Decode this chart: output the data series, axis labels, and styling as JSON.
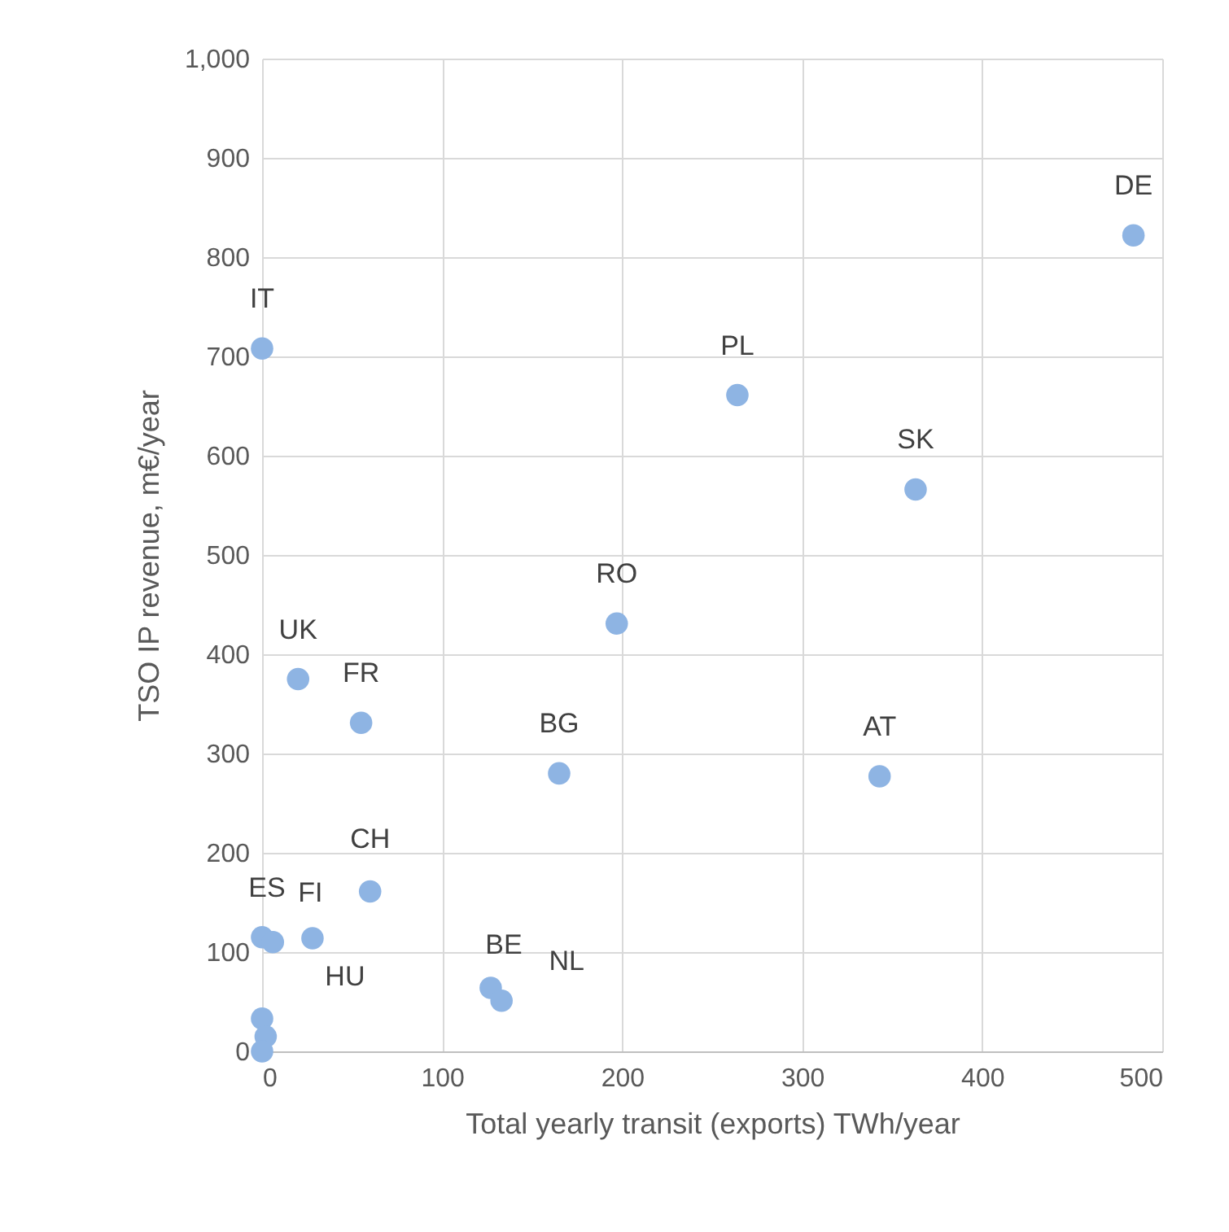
{
  "chart_data": {
    "type": "scatter",
    "xlabel": "Total yearly transit (exports) TWh/year",
    "ylabel": "TSO IP revenue, m€/year",
    "xlim": [
      0,
      500
    ],
    "xticks": [
      0,
      100,
      200,
      300,
      400,
      500
    ],
    "ylim": [
      0,
      1000
    ],
    "yticks": [
      0,
      100,
      200,
      300,
      400,
      500,
      600,
      700,
      800,
      900,
      {
        "value": 1000,
        "label": "1,000"
      }
    ],
    "grid": true,
    "marker": "circle",
    "series": [
      {
        "color": "#8eb4e3",
        "x": [
          484,
          0,
          264,
          363,
          197,
          20,
          55,
          165,
          343,
          60,
          0,
          6,
          28,
          127,
          133,
          0,
          2,
          0
        ],
        "values": [
          822,
          708,
          661,
          566,
          431,
          375,
          331,
          280,
          277,
          161,
          115,
          110,
          114,
          64,
          51,
          33,
          15,
          0
        ]
      }
    ],
    "annotations": [
      {
        "text": "DE",
        "x": 484,
        "y": 822
      },
      {
        "text": "IT",
        "x": 0,
        "y": 708
      },
      {
        "text": "PL",
        "x": 264,
        "y": 661
      },
      {
        "text": "SK",
        "x": 363,
        "y": 566
      },
      {
        "text": "RO",
        "x": 197,
        "y": 431
      },
      {
        "text": "UK",
        "x": 20,
        "y": 375
      },
      {
        "text": "FR",
        "x": 55,
        "y": 331
      },
      {
        "text": "BG",
        "x": 165,
        "y": 280
      },
      {
        "text": "AT",
        "x": 343,
        "y": 277
      },
      {
        "text": "CH",
        "x": 60,
        "y": 161
      },
      {
        "text": "ES",
        "x": 0,
        "y": 115
      },
      {
        "text": "FI",
        "x": 6,
        "y": 110
      },
      {
        "text": "HU",
        "x": 28,
        "y": 114
      },
      {
        "text": "BE",
        "x": 127,
        "y": 64
      },
      {
        "text": "NL",
        "x": 133,
        "y": 51
      }
    ]
  }
}
